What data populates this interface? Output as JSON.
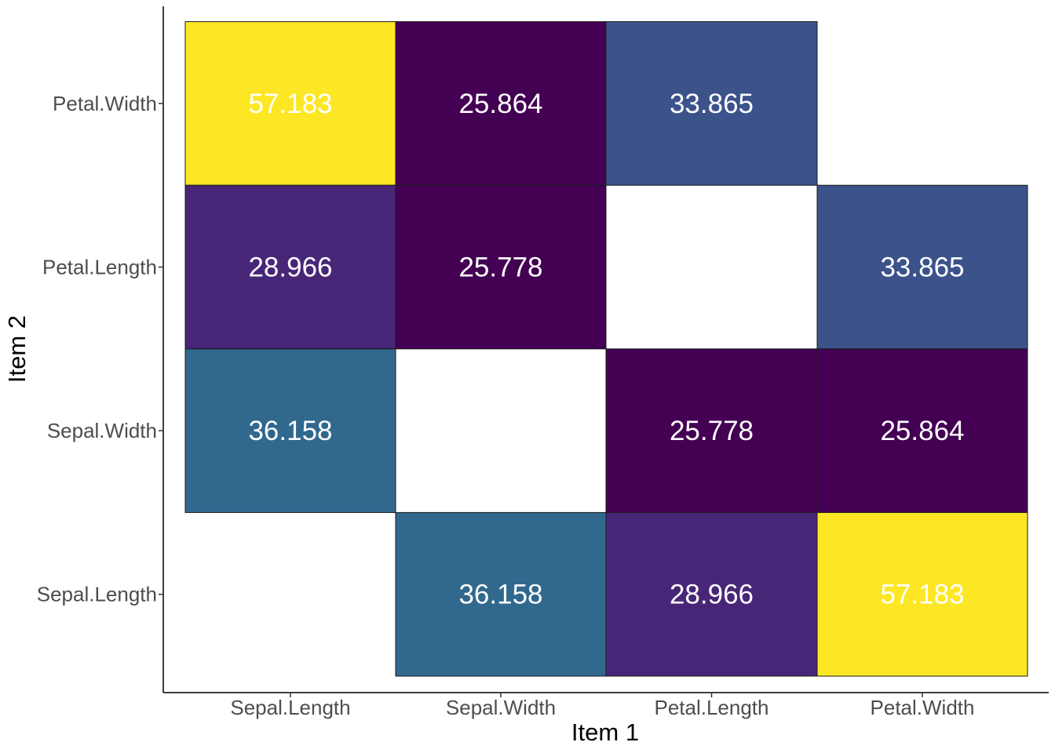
{
  "chart_data": {
    "type": "heatmap",
    "title": "",
    "xlabel": "Item 1",
    "ylabel": "Item 2",
    "x_categories": [
      "Sepal.Length",
      "Sepal.Width",
      "Petal.Length",
      "Petal.Width"
    ],
    "y_categories": [
      "Sepal.Length",
      "Sepal.Width",
      "Petal.Length",
      "Petal.Width"
    ],
    "cells": [
      {
        "x": "Sepal.Length",
        "y": "Petal.Width",
        "value": 57.183,
        "label": "57.183",
        "color": "#FDE725"
      },
      {
        "x": "Sepal.Width",
        "y": "Petal.Width",
        "value": 25.864,
        "label": "25.864",
        "color": "#440154"
      },
      {
        "x": "Petal.Length",
        "y": "Petal.Width",
        "value": 33.865,
        "label": "33.865",
        "color": "#3B528B"
      },
      {
        "x": "Sepal.Length",
        "y": "Petal.Length",
        "value": 28.966,
        "label": "28.966",
        "color": "#482677"
      },
      {
        "x": "Sepal.Width",
        "y": "Petal.Length",
        "value": 25.778,
        "label": "25.778",
        "color": "#440154"
      },
      {
        "x": "Petal.Width",
        "y": "Petal.Length",
        "value": 33.865,
        "label": "33.865",
        "color": "#3B528B"
      },
      {
        "x": "Sepal.Length",
        "y": "Sepal.Width",
        "value": 36.158,
        "label": "36.158",
        "color": "#31688E"
      },
      {
        "x": "Petal.Length",
        "y": "Sepal.Width",
        "value": 25.778,
        "label": "25.778",
        "color": "#440154"
      },
      {
        "x": "Petal.Width",
        "y": "Sepal.Width",
        "value": 25.864,
        "label": "25.864",
        "color": "#440154"
      },
      {
        "x": "Sepal.Width",
        "y": "Sepal.Length",
        "value": 36.158,
        "label": "36.158",
        "color": "#31688E"
      },
      {
        "x": "Petal.Length",
        "y": "Sepal.Length",
        "value": 28.966,
        "label": "28.966",
        "color": "#482677"
      },
      {
        "x": "Petal.Width",
        "y": "Sepal.Length",
        "value": 57.183,
        "label": "57.183",
        "color": "#FDE725"
      }
    ],
    "legend": "none",
    "grid": false,
    "colormap": "viridis"
  }
}
